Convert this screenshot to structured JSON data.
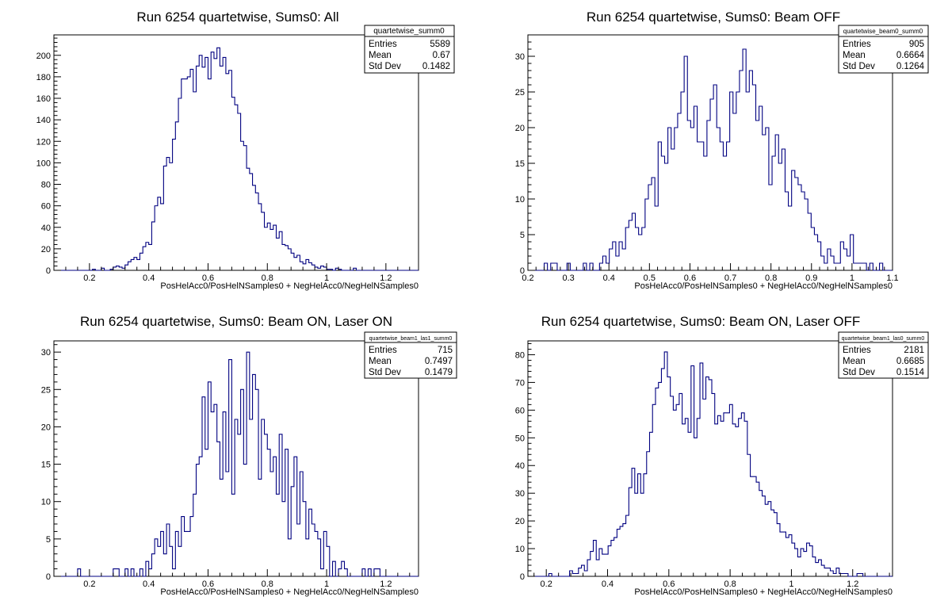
{
  "chart_data": [
    {
      "type": "bar",
      "title": "Run 6254 quartetwise, Sums0: All",
      "xlabel": "PosHelAcc0/PosHelNSamples0 + NegHelAcc0/NegHelNSamples0",
      "ylabel": "",
      "xlim": [
        0.08,
        1.31
      ],
      "ylim": [
        0,
        219
      ],
      "xticks": [
        0.2,
        0.4,
        0.6,
        0.8,
        1,
        1.2
      ],
      "xtick_labels": [
        "0.2",
        "0.4",
        "0.6",
        "0.8",
        "1",
        "1.2"
      ],
      "yticks": [
        0,
        20,
        40,
        60,
        80,
        100,
        120,
        140,
        160,
        180,
        200
      ],
      "ytick_labels": [
        "0",
        "20",
        "40",
        "60",
        "80",
        "100",
        "120",
        "140",
        "160",
        "180",
        "200"
      ],
      "color": "#000080",
      "stats": {
        "name": "quartetwise_summ0",
        "rows": [
          {
            "label": "Entries",
            "value": "5589"
          },
          {
            "label": "Mean",
            "value": "0.67"
          },
          {
            "label": "Std Dev",
            "value": "0.1482"
          }
        ]
      },
      "bins": {
        "edges_start": 0.1,
        "edges_end": 1.31,
        "values": [
          0,
          0,
          0,
          0,
          0,
          0,
          0,
          0,
          0,
          0,
          0,
          1,
          0,
          0,
          2,
          0,
          0,
          1,
          3,
          4,
          3,
          2,
          5,
          8,
          10,
          12,
          10,
          16,
          22,
          26,
          24,
          45,
          60,
          68,
          62,
          97,
          105,
          100,
          122,
          138,
          160,
          178,
          178,
          180,
          187,
          166,
          190,
          200,
          189,
          198,
          178,
          203,
          197,
          207,
          190,
          198,
          183,
          186,
          161,
          154,
          146,
          120,
          116,
          95,
          90,
          79,
          72,
          62,
          54,
          40,
          44,
          38,
          42,
          30,
          36,
          24,
          23,
          20,
          16,
          12,
          14,
          8,
          6,
          10,
          7,
          5,
          3,
          2,
          4,
          3,
          1,
          1,
          0,
          2,
          1,
          0,
          0,
          0,
          0,
          2,
          0,
          0,
          0,
          0,
          0,
          0,
          0,
          0,
          0,
          0,
          0,
          0,
          0,
          0,
          0,
          0,
          0,
          0,
          0,
          0,
          0
        ]
      }
    },
    {
      "type": "bar",
      "title": "Run 6254 quartetwise, Sums0: Beam OFF",
      "xlabel": "PosHelAcc0/PosHelNSamples0 + NegHelAcc0/NegHelNSamples0",
      "ylabel": "",
      "xlim": [
        0.2,
        1.1
      ],
      "ylim": [
        0,
        33
      ],
      "xticks": [
        0.2,
        0.3,
        0.4,
        0.5,
        0.6,
        0.7,
        0.8,
        0.9,
        1,
        1.1
      ],
      "xtick_labels": [
        "0.2",
        "0.3",
        "0.4",
        "0.5",
        "0.6",
        "0.7",
        "0.8",
        "0.9",
        "1",
        "1.1"
      ],
      "yticks": [
        0,
        5,
        10,
        15,
        20,
        25,
        30
      ],
      "ytick_labels": [
        "0",
        "5",
        "10",
        "15",
        "20",
        "25",
        "30"
      ],
      "color": "#000080",
      "stats": {
        "name": "quartetwise_beam0_summ0",
        "rows": [
          {
            "label": "Entries",
            "value": "905"
          },
          {
            "label": "Mean",
            "value": "0.6664"
          },
          {
            "label": "Std Dev",
            "value": "0.1264"
          }
        ]
      },
      "bins": {
        "edges_start": 0.2,
        "edges_end": 1.1,
        "values": [
          0,
          0,
          0,
          0,
          0,
          1,
          0,
          1,
          1,
          0,
          0,
          0,
          1,
          0,
          0,
          0,
          0,
          1,
          0,
          1,
          0,
          0,
          1,
          2,
          1,
          3,
          4,
          2,
          4,
          3,
          6,
          7,
          8,
          6,
          5,
          6,
          10,
          12,
          13,
          9,
          18,
          16,
          15,
          20,
          17,
          20,
          22,
          25,
          30,
          21,
          20,
          23,
          18,
          18,
          16,
          21,
          24,
          26,
          20,
          18,
          16,
          18,
          25,
          22,
          25,
          28,
          31,
          25,
          28,
          26,
          21,
          23,
          19,
          20,
          12,
          16,
          19,
          15,
          17,
          11,
          9,
          14,
          13,
          12,
          11,
          10,
          8,
          6,
          5,
          4,
          2,
          1,
          3,
          2,
          1,
          1,
          4,
          3,
          2,
          5,
          1,
          1,
          1,
          1,
          0,
          1,
          0,
          0,
          1,
          0,
          0,
          0
        ]
      }
    },
    {
      "type": "bar",
      "title": "Run 6254 quartetwise, Sums0: Beam ON, Laser ON",
      "xlabel": "PosHelAcc0/PosHelNSamples0 + NegHelAcc0/NegHelNSamples0",
      "ylabel": "",
      "xlim": [
        0.08,
        1.31
      ],
      "ylim": [
        0,
        31.5
      ],
      "xticks": [
        0.2,
        0.4,
        0.6,
        0.8,
        1,
        1.2
      ],
      "xtick_labels": [
        "0.2",
        "0.4",
        "0.6",
        "0.8",
        "1",
        "1.2"
      ],
      "yticks": [
        0,
        5,
        10,
        15,
        20,
        25,
        30
      ],
      "ytick_labels": [
        "0",
        "5",
        "10",
        "15",
        "20",
        "25",
        "30"
      ],
      "color": "#000080",
      "stats": {
        "name": "quartetwise_beam1_las1_summ0",
        "rows": [
          {
            "label": "Entries",
            "value": "715"
          },
          {
            "label": "Mean",
            "value": "0.7497"
          },
          {
            "label": "Std Dev",
            "value": "0.1479"
          }
        ]
      },
      "bins": {
        "edges_start": 0.1,
        "edges_end": 1.31,
        "values": [
          0,
          0,
          0,
          0,
          0,
          0,
          1,
          0,
          0,
          0,
          0,
          0,
          0,
          0,
          0,
          0,
          0,
          0,
          1,
          1,
          0,
          0,
          1,
          0,
          1,
          0,
          0,
          1,
          0,
          2,
          1,
          3,
          5,
          4,
          6,
          3,
          7,
          4,
          1,
          6,
          4,
          8,
          6,
          6,
          8,
          11,
          15,
          16,
          24,
          17,
          26,
          22,
          23,
          18,
          13,
          22,
          14,
          29,
          11,
          21,
          19,
          25,
          15,
          30,
          21,
          27,
          25,
          13,
          21,
          19,
          17,
          14,
          16,
          11,
          19,
          10,
          17,
          5,
          12,
          16,
          7,
          14,
          10,
          5,
          9,
          7,
          6,
          5,
          1,
          6,
          4,
          0,
          2,
          0,
          1,
          2,
          1,
          0,
          0,
          0,
          0,
          0,
          1,
          0,
          1,
          0,
          1,
          1,
          0,
          0,
          0,
          0,
          0,
          0,
          0,
          0,
          0,
          0,
          0,
          0,
          0
        ]
      }
    },
    {
      "type": "bar",
      "title": "Run 6254 quartetwise, Sums0: Beam ON, Laser OFF",
      "xlabel": "PosHelAcc0/PosHelNSamples0 + NegHelAcc0/NegHelNSamples0",
      "ylabel": "",
      "xlim": [
        0.14,
        1.33
      ],
      "ylim": [
        0,
        85
      ],
      "xticks": [
        0.2,
        0.4,
        0.6,
        0.8,
        1,
        1.2
      ],
      "xtick_labels": [
        "0.2",
        "0.4",
        "0.6",
        "0.8",
        "1",
        "1.2"
      ],
      "yticks": [
        0,
        10,
        20,
        30,
        40,
        50,
        60,
        70,
        80
      ],
      "ytick_labels": [
        "0",
        "10",
        "20",
        "30",
        "40",
        "50",
        "60",
        "70",
        "80"
      ],
      "color": "#000080",
      "stats": {
        "name": "quartetwise_beam1_las0_summ0",
        "rows": [
          {
            "label": "Entries",
            "value": "2181"
          },
          {
            "label": "Mean",
            "value": "0.6685"
          },
          {
            "label": "Std Dev",
            "value": "0.1514"
          }
        ]
      },
      "bins": {
        "edges_start": 0.16,
        "edges_end": 1.33,
        "values": [
          0,
          0,
          0,
          0,
          0,
          1,
          0,
          0,
          0,
          0,
          0,
          0,
          2,
          1,
          1,
          3,
          4,
          2,
          6,
          9,
          13,
          6,
          10,
          8,
          8,
          11,
          13,
          14,
          17,
          18,
          19,
          22,
          32,
          39,
          30,
          37,
          30,
          37,
          45,
          52,
          62,
          68,
          70,
          75,
          81,
          72,
          65,
          60,
          62,
          66,
          55,
          57,
          52,
          76,
          50,
          57,
          77,
          64,
          72,
          71,
          66,
          55,
          58,
          56,
          59,
          59,
          62,
          55,
          54,
          57,
          59,
          56,
          44,
          36,
          36,
          34,
          31,
          29,
          26,
          27,
          24,
          23,
          19,
          16,
          16,
          14,
          15,
          12,
          10,
          7,
          10,
          9,
          12,
          11,
          7,
          5,
          6,
          4,
          3,
          3,
          2,
          1,
          3,
          1,
          1,
          1,
          0,
          0,
          0,
          1,
          1,
          0,
          0,
          0,
          0,
          0,
          0,
          0,
          0,
          0,
          0
        ]
      }
    }
  ]
}
